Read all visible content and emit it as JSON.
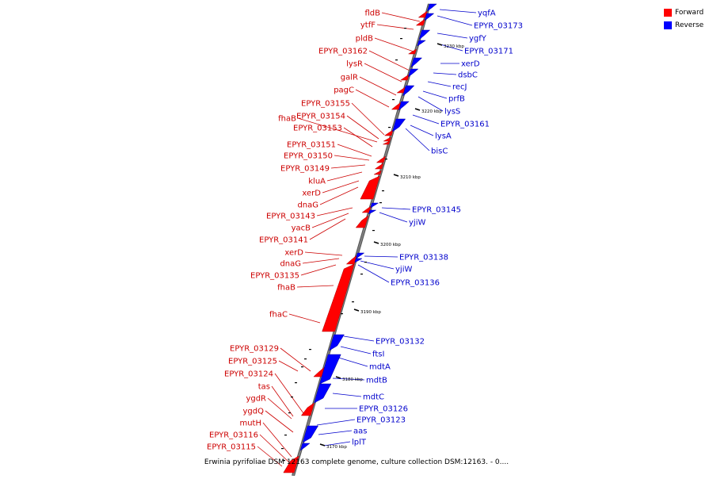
{
  "legend": {
    "forward_label": "Forward",
    "reverse_label": "Reverse",
    "forward_color": "#ff0000",
    "reverse_color": "#0000ff"
  },
  "colors": {
    "forward_label": "#cc0000",
    "reverse_label": "#0000cc",
    "backbone": "#808080",
    "tick": "#000000"
  },
  "caption": "Erwinia pyrifoliae DSM 12163 complete genome, culture collection DSM:12163. - 0....",
  "ticks": [
    "3230 kbp",
    "3220 kbp",
    "3210 kbp",
    "3200 kbp",
    "3190 kbp",
    "3180 kbp",
    "3170 kbp"
  ],
  "forward_genes": [
    "fldB",
    "ytfF",
    "pldB",
    "EPYR_03162",
    "lysR",
    "galR",
    "pagC",
    "EPYR_03155",
    "EPYR_03154",
    "fhaB",
    "EPYR_03153",
    "EPYR_03151",
    "EPYR_03150",
    "EPYR_03149",
    "kluA",
    "xerD",
    "dnaG",
    "EPYR_03143",
    "yacB",
    "EPYR_03141",
    "xerD",
    "dnaG",
    "EPYR_03135",
    "fhaB",
    "fhaC",
    "EPYR_03129",
    "EPYR_03125",
    "EPYR_03124",
    "tas",
    "ygdR",
    "ygdQ",
    "mutH",
    "EPYR_03116",
    "EPYR_03115"
  ],
  "reverse_genes": [
    "yqfA",
    "EPYR_03173",
    "ygfY",
    "EPYR_03171",
    "xerD",
    "dsbC",
    "recJ",
    "prfB",
    "lysS",
    "EPYR_03161",
    "lysA",
    "bisC",
    "EPYR_03145",
    "yjiW",
    "EPYR_03138",
    "yjiW",
    "EPYR_03136",
    "EPYR_03132",
    "ftsI",
    "mdtA",
    "mdtB",
    "mdtC",
    "EPYR_03126",
    "EPYR_03123",
    "aas",
    "lplT"
  ]
}
